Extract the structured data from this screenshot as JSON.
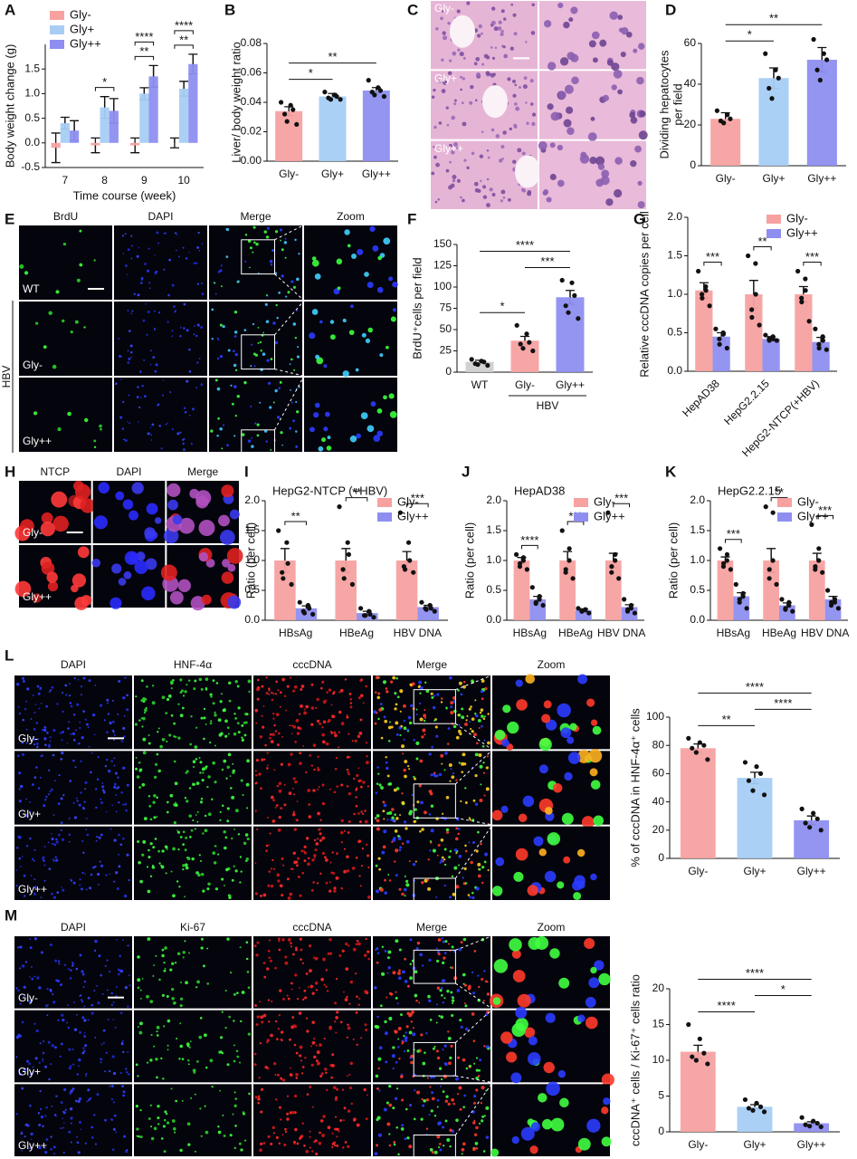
{
  "chart_data": [
    {
      "letter": "A",
      "type": "bar",
      "ylabel": "Body weight change (g)",
      "xlabel": "Time course (week)",
      "categories": [
        "7",
        "8",
        "9",
        "10"
      ],
      "series": [
        {
          "name": "Gly-",
          "color": "#f7a1a1",
          "values": [
            -0.1,
            -0.05,
            -0.05,
            0.0
          ],
          "errors": [
            0.3,
            0.15,
            0.15,
            0.1
          ]
        },
        {
          "name": "Gly+",
          "color": "#a7cdf4",
          "values": [
            0.4,
            0.72,
            1.0,
            1.1
          ],
          "errors": [
            0.12,
            0.22,
            0.12,
            0.15
          ]
        },
        {
          "name": "Gly++",
          "color": "#8e8ef0",
          "values": [
            0.25,
            0.65,
            1.35,
            1.6
          ],
          "errors": [
            0.2,
            0.25,
            0.22,
            0.2
          ]
        }
      ],
      "ylim": [
        -0.5,
        2.0
      ],
      "yticks": [
        -0.5,
        {
          "value": 0,
          "label": "0.0"
        },
        0.5,
        {
          "value": 1,
          "label": "1.0"
        },
        1.5
      ],
      "legend": "upper left",
      "annotations": [
        {
          "category": "8",
          "label": "*"
        },
        {
          "category": "9",
          "label": "**"
        },
        {
          "category": "9",
          "label": "****"
        },
        {
          "category": "10",
          "label": "**"
        },
        {
          "category": "10",
          "label": "****"
        }
      ]
    },
    {
      "letter": "B",
      "type": "bar",
      "ylabel": "Liver/ body weight ratio",
      "categories": [
        "Gly-",
        "Gly+",
        "Gly++"
      ],
      "series": [
        {
          "colors": [
            "#f7a1a1",
            "#a7cdf4",
            "#8e8ef0"
          ],
          "values": [
            0.034,
            0.044,
            0.048
          ],
          "errors": [
            0.003,
            0.002,
            0.002
          ],
          "points": [
            [
              0.04,
              0.038,
              0.035,
              0.032,
              0.027,
              0.025
            ],
            [
              0.047,
              0.045,
              0.044,
              0.043,
              0.042,
              0.042
            ],
            [
              0.055,
              0.05,
              0.048,
              0.047,
              0.045,
              0.044
            ]
          ]
        }
      ],
      "ylim": [
        0,
        0.08
      ],
      "yticks": [
        {
          "value": 0,
          "label": "0.00"
        },
        {
          "value": 0.02,
          "label": "0.02"
        },
        {
          "value": 0.04,
          "label": "0.04"
        },
        {
          "value": 0.06,
          "label": "0.06"
        },
        {
          "value": 0.08,
          "label": "0.08"
        }
      ],
      "brackets": [
        {
          "pair": [
            "Gly-",
            "Gly+"
          ],
          "label": "*"
        },
        {
          "pair": [
            "Gly-",
            "Gly++"
          ],
          "label": "**"
        }
      ]
    },
    {
      "letter": "D",
      "type": "bar",
      "ylabel": [
        "Dividing hepatocytes",
        "per field"
      ],
      "categories": [
        "Gly-",
        "Gly+",
        "Gly++"
      ],
      "series": [
        {
          "colors": [
            "#f7a1a1",
            "#a7cdf4",
            "#8e8ef0"
          ],
          "values": [
            23,
            43,
            52
          ],
          "errors": [
            3,
            5,
            6
          ],
          "points": [
            [
              27,
              25,
              23,
              22,
              21
            ],
            [
              55,
              47,
              43,
              38,
              33
            ],
            [
              62,
              55,
              52,
              47,
              42
            ]
          ]
        }
      ],
      "ylim": [
        0,
        60
      ],
      "yticks": [
        0,
        20,
        40,
        60
      ],
      "brackets": [
        {
          "pair": [
            "Gly-",
            "Gly+"
          ],
          "label": "*"
        },
        {
          "pair": [
            "Gly-",
            "Gly++"
          ],
          "label": "**"
        }
      ]
    },
    {
      "letter": "F",
      "type": "bar",
      "ylabel": "BrdU⁺cells per field",
      "categories": [
        "WT",
        "Gly-",
        "Gly++"
      ],
      "series": [
        {
          "colors": [
            "#cfcfcf",
            "#f7a1a1",
            "#8e8ef0"
          ],
          "values": [
            12,
            37,
            88
          ],
          "errors": [
            2,
            5,
            8
          ],
          "points": [
            [
              15,
              13,
              12,
              10,
              9,
              8
            ],
            [
              55,
              45,
              35,
              33,
              28,
              25
            ],
            [
              108,
              105,
              90,
              78,
              70,
              63
            ]
          ]
        }
      ],
      "ylim": [
        0,
        150
      ],
      "yticks": [
        0,
        25,
        50,
        75,
        100,
        125,
        150
      ],
      "group_label": {
        "text": "HBV",
        "categories": [
          "Gly-",
          "Gly++"
        ]
      },
      "brackets": [
        {
          "pair": [
            "WT",
            "Gly-"
          ],
          "label": "*"
        },
        {
          "pair": [
            "Gly-",
            "Gly++"
          ],
          "label": "***"
        },
        {
          "pair": [
            "WT",
            "Gly++"
          ],
          "label": "****"
        }
      ]
    },
    {
      "letter": "G",
      "type": "bar",
      "ylabel": "Relative cccDNA copies per cell",
      "categories": [
        "HepAD38",
        "HepG2.2.15",
        "HepG2-NTCP(+HBV)"
      ],
      "series": [
        {
          "name": "Gly-",
          "color": "#f7a1a1",
          "values": [
            1.05,
            1.0,
            1.0
          ],
          "errors": [
            0.1,
            0.18,
            0.1
          ],
          "points": [
            [
              1.3,
              1.1,
              1.05,
              1.0,
              0.95,
              0.85
            ],
            [
              1.5,
              1.4,
              1.0,
              0.8,
              0.7,
              0.6
            ],
            [
              1.3,
              1.2,
              1.05,
              0.95,
              0.9,
              0.65
            ]
          ]
        },
        {
          "name": "Gly++",
          "color": "#8e8ef0",
          "values": [
            0.45,
            0.42,
            0.38
          ],
          "errors": [
            0.05,
            0.03,
            0.06
          ],
          "points": [
            [
              0.55,
              0.5,
              0.48,
              0.42,
              0.35,
              0.3
            ],
            [
              0.47,
              0.45,
              0.42,
              0.42,
              0.4,
              0.4
            ],
            [
              0.55,
              0.45,
              0.4,
              0.35,
              0.3,
              0.28
            ]
          ]
        }
      ],
      "ylim": [
        0,
        2.0
      ],
      "yticks": [
        {
          "value": 0,
          "label": "0.0"
        },
        0.5,
        {
          "value": 1,
          "label": "1.0"
        },
        1.5,
        {
          "value": 2,
          "label": "2.0"
        }
      ],
      "legend": "upper right",
      "annotations": [
        {
          "category": "HepAD38",
          "label": "***"
        },
        {
          "category": "HepG2.2.15",
          "label": "**"
        },
        {
          "category": "HepG2-NTCP(+HBV)",
          "label": "***"
        }
      ]
    },
    {
      "letter": "I",
      "type": "bar",
      "title": "HepG2-NTCP (+HBV)",
      "ylabel": "Ratio (per cell)",
      "categories": [
        "HBsAg",
        "HBeAg",
        "HBV DNA"
      ],
      "series": [
        {
          "name": "Gly-",
          "color": "#f7a1a1",
          "values": [
            1.0,
            1.0,
            1.0
          ],
          "errors": [
            0.2,
            0.2,
            0.15
          ],
          "points": [
            [
              1.5,
              1.3,
              0.95,
              0.8,
              0.7,
              0.6
            ],
            [
              1.9,
              1.3,
              1.1,
              0.85,
              0.7,
              0.6
            ],
            [
              1.8,
              1.3,
              1.0,
              0.9,
              0.85,
              0.8
            ]
          ]
        },
        {
          "name": "Gly++",
          "color": "#8e8ef0",
          "values": [
            0.2,
            0.12,
            0.22
          ],
          "errors": [
            0.04,
            0.03,
            0.03
          ],
          "points": [
            [
              0.3,
              0.25,
              0.2,
              0.15,
              0.12,
              0.1
            ],
            [
              0.2,
              0.15,
              0.1,
              0.08,
              0.08,
              0.05
            ],
            [
              0.3,
              0.25,
              0.2,
              0.2,
              0.18,
              0.15
            ]
          ]
        }
      ],
      "ylim": [
        0,
        2.0
      ],
      "yticks": [
        {
          "value": 0,
          "label": "0.0"
        },
        0.5,
        {
          "value": 1,
          "label": "1.0"
        },
        1.5,
        {
          "value": 2,
          "label": "2.0"
        }
      ],
      "legend": "upper right",
      "annotations": [
        {
          "category": "HBsAg",
          "label": "**"
        },
        {
          "category": "HBeAg",
          "label": "**"
        },
        {
          "category": "HBV DNA",
          "label": "***"
        }
      ]
    },
    {
      "letter": "J",
      "type": "bar",
      "title": "HepAD38",
      "ylabel": "Ratio (per cell)",
      "categories": [
        "HBsAg",
        "HBeAg",
        "HBV DNA"
      ],
      "series": [
        {
          "name": "Gly-",
          "color": "#f7a1a1",
          "values": [
            1.0,
            1.0,
            1.0
          ],
          "errors": [
            0.05,
            0.15,
            0.12
          ],
          "points": [
            [
              1.1,
              1.05,
              1.0,
              0.95,
              0.9,
              0.85
            ],
            [
              1.5,
              1.2,
              1.0,
              0.85,
              0.8,
              0.7
            ],
            [
              1.8,
              1.1,
              1.0,
              0.9,
              0.8,
              0.7
            ]
          ]
        },
        {
          "name": "Gly++",
          "color": "#8e8ef0",
          "values": [
            0.35,
            0.17,
            0.22
          ],
          "errors": [
            0.05,
            0.02,
            0.04
          ],
          "points": [
            [
              0.55,
              0.4,
              0.35,
              0.3,
              0.28,
              0.25
            ],
            [
              0.2,
              0.18,
              0.17,
              0.15,
              0.15,
              0.12
            ],
            [
              0.35,
              0.25,
              0.2,
              0.18,
              0.15,
              0.12
            ]
          ]
        }
      ],
      "ylim": [
        0,
        2.0
      ],
      "yticks": [
        {
          "value": 0,
          "label": "0.0"
        },
        0.5,
        {
          "value": 1,
          "label": "1.0"
        },
        1.5,
        {
          "value": 2,
          "label": "2.0"
        }
      ],
      "legend": "upper right",
      "annotations": [
        {
          "category": "HBsAg",
          "label": "****"
        },
        {
          "category": "HBeAg",
          "label": "***"
        },
        {
          "category": "HBV DNA",
          "label": "***"
        }
      ]
    },
    {
      "letter": "K",
      "type": "bar",
      "title": "HepG2.2.15",
      "ylabel": "Ratio (per cell)",
      "categories": [
        "HBsAg",
        "HBeAg",
        "HBV DNA"
      ],
      "series": [
        {
          "name": "Gly-",
          "color": "#f7a1a1",
          "values": [
            1.0,
            1.0,
            1.0
          ],
          "errors": [
            0.06,
            0.2,
            0.12
          ],
          "points": [
            [
              1.2,
              1.1,
              1.0,
              0.95,
              0.9,
              0.85
            ],
            [
              1.9,
              1.8,
              1.0,
              0.85,
              0.7,
              0.6
            ],
            [
              1.6,
              1.2,
              1.0,
              0.9,
              0.85,
              0.8
            ]
          ]
        },
        {
          "name": "Gly++",
          "color": "#8e8ef0",
          "values": [
            0.4,
            0.25,
            0.35
          ],
          "errors": [
            0.06,
            0.04,
            0.05
          ],
          "points": [
            [
              0.6,
              0.45,
              0.4,
              0.35,
              0.3,
              0.2
            ],
            [
              0.35,
              0.3,
              0.25,
              0.2,
              0.18,
              0.15
            ],
            [
              0.5,
              0.35,
              0.3,
              0.3,
              0.25,
              0.2
            ]
          ]
        }
      ],
      "ylim": [
        0,
        2.0
      ],
      "yticks": [
        {
          "value": 0,
          "label": "0.0"
        },
        0.5,
        {
          "value": 1,
          "label": "1.0"
        },
        1.5,
        {
          "value": 2,
          "label": "2.0"
        }
      ],
      "legend": "upper right",
      "annotations": [
        {
          "category": "HBsAg",
          "label": "***"
        },
        {
          "category": "HBeAg",
          "label": "**"
        },
        {
          "category": "HBV DNA",
          "label": "***"
        }
      ]
    },
    {
      "type": "bar",
      "ylabel": "% of cccDNA in HNF-4α⁺ cells",
      "categories": [
        "Gly-",
        "Gly+",
        "Gly++"
      ],
      "series": [
        {
          "colors": [
            "#f7a1a1",
            "#a7cdf4",
            "#8e8ef0"
          ],
          "values": [
            78,
            57,
            27
          ],
          "errors": [
            3,
            4,
            3
          ],
          "points": [
            [
              85,
              82,
              80,
              78,
              75,
              70
            ],
            [
              68,
              65,
              60,
              55,
              48,
              45
            ],
            [
              35,
              32,
              28,
              25,
              22,
              20
            ]
          ]
        }
      ],
      "ylim": [
        0,
        100
      ],
      "yticks": [
        0,
        20,
        40,
        60,
        80,
        100
      ],
      "brackets": [
        {
          "pair": [
            "Gly-",
            "Gly+"
          ],
          "label": "**"
        },
        {
          "pair": [
            "Gly+",
            "Gly++"
          ],
          "label": "****"
        },
        {
          "pair": [
            "Gly-",
            "Gly++"
          ],
          "label": "****"
        }
      ]
    },
    {
      "type": "bar",
      "ylabel": "cccDNA⁺ cells / Ki-67⁺ cells ratio",
      "categories": [
        "Gly-",
        "Gly+",
        "Gly++"
      ],
      "series": [
        {
          "colors": [
            "#f7a1a1",
            "#a7cdf4",
            "#8e8ef0"
          ],
          "values": [
            11.2,
            3.5,
            1.2
          ],
          "errors": [
            0.9,
            0.3,
            0.2
          ],
          "points": [
            [
              15,
              13,
              11,
              10.5,
              10,
              9.5
            ],
            [
              4.5,
              4,
              3.5,
              3.3,
              3,
              2.8
            ],
            [
              2,
              1.5,
              1.2,
              1,
              0.8,
              0.7
            ]
          ]
        }
      ],
      "ylim": [
        0,
        20
      ],
      "yticks": [
        0,
        5,
        10,
        15,
        20
      ],
      "brackets": [
        {
          "pair": [
            "Gly-",
            "Gly+"
          ],
          "label": "****"
        },
        {
          "pair": [
            "Gly+",
            "Gly++"
          ],
          "label": "*"
        },
        {
          "pair": [
            "Gly-",
            "Gly++"
          ],
          "label": "****"
        }
      ]
    }
  ],
  "figure": {
    "images": [
      {
        "letter": "C",
        "row_labels": [
          "Gly-",
          "Gly+",
          "Gly++"
        ]
      },
      {
        "letter": "E",
        "column_labels": [
          "BrdU",
          "DAPI",
          "Merge",
          "Zoom"
        ],
        "row_labels": [
          "WT",
          "Gly-",
          "Gly++"
        ],
        "side_label": "HBV"
      },
      {
        "letter": "H",
        "column_labels": [
          "NTCP",
          "DAPI",
          "Merge"
        ],
        "row_labels": [
          "Gly-",
          "Gly++"
        ]
      },
      {
        "letter": "L",
        "column_labels": [
          "DAPI",
          "HNF-4α",
          "cccDNA",
          "Merge",
          "Zoom"
        ],
        "row_labels": [
          "Gly-",
          "Gly+",
          "Gly++"
        ]
      },
      {
        "letter": "M",
        "column_labels": [
          "DAPI",
          "Ki-67",
          "cccDNA",
          "Merge",
          "Zoom"
        ],
        "row_labels": [
          "Gly-",
          "Gly+",
          "Gly++"
        ]
      }
    ]
  }
}
